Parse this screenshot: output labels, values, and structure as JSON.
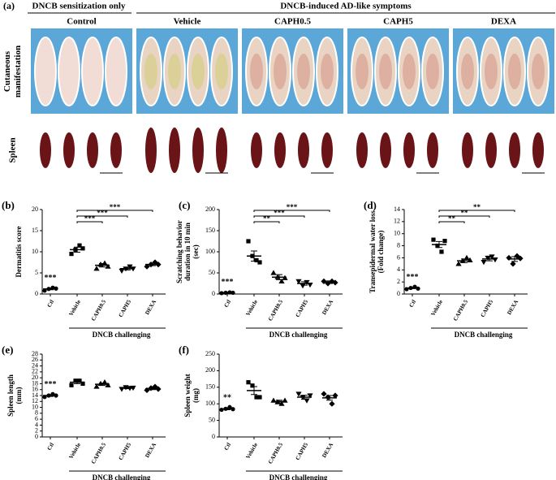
{
  "panel_a": {
    "label": "(a)",
    "header_left": "DNCB sensitization only",
    "header_right": "DNCB-induced AD-like symptoms",
    "groups": [
      "Control",
      "Vehicle",
      "CAPH0.5",
      "CAPH5",
      "DEXA"
    ],
    "rows": [
      [
        "Cutaneous",
        "manifestation"
      ],
      [
        "Spleen"
      ]
    ]
  },
  "chart_data": [
    {
      "type": "dotplot",
      "label": "(b)",
      "ylabel": [
        "Dermatitis score"
      ],
      "categories": [
        "Ctl",
        "Vehicle",
        "CAPH0.5",
        "CAPH5",
        "DEXA"
      ],
      "values": [
        1.2,
        10.5,
        6.8,
        6,
        7
      ],
      "errors": [
        0.2,
        0.6,
        0.4,
        0.3,
        0.3
      ],
      "points": [
        [
          0.8,
          1.2,
          1.5,
          1.3
        ],
        [
          9.5,
          10.5,
          11.5,
          10.8
        ],
        [
          6,
          7,
          7.3,
          6.5
        ],
        [
          5.5,
          6,
          6.5,
          6
        ],
        [
          6.5,
          7,
          7.5,
          7
        ]
      ],
      "markers": [
        "circle",
        "square",
        "triangle-up",
        "triangle-down",
        "diamond"
      ],
      "color": "#000000",
      "ylim": [
        0,
        20
      ],
      "yticks": [
        0,
        5,
        10,
        15,
        20
      ],
      "control_label": "***",
      "brackets": [
        {
          "from": 1,
          "to": 2,
          "label": "***"
        },
        {
          "from": 1,
          "to": 3,
          "label": "***"
        },
        {
          "from": 1,
          "to": 4,
          "label": "***"
        }
      ],
      "group_label": "DNCB challenging"
    },
    {
      "type": "dotplot",
      "label": "(c)",
      "ylabel": [
        "Scratching behavior",
        "duration in 10 min",
        "(sec)"
      ],
      "categories": [
        "Ctl",
        "Vehicle",
        "CAPH0.5",
        "CAPH5",
        "DEXA"
      ],
      "values": [
        3,
        90,
        40,
        25,
        28
      ],
      "errors": [
        1,
        12,
        6,
        4,
        3
      ],
      "points": [
        [
          2,
          3,
          4,
          3
        ],
        [
          125,
          90,
          80,
          75
        ],
        [
          50,
          40,
          30,
          38
        ],
        [
          30,
          20,
          28,
          22
        ],
        [
          30,
          25,
          30,
          27
        ]
      ],
      "markers": [
        "circle",
        "square",
        "triangle-up",
        "triangle-down",
        "diamond"
      ],
      "color": "#000000",
      "ylim": [
        0,
        200
      ],
      "yticks": [
        0,
        50,
        100,
        150,
        200
      ],
      "control_label": "***",
      "brackets": [
        {
          "from": 1,
          "to": 2,
          "label": "**"
        },
        {
          "from": 1,
          "to": 3,
          "label": "***"
        },
        {
          "from": 1,
          "to": 4,
          "label": "***"
        }
      ],
      "group_label": "DNCB challenging"
    },
    {
      "type": "dotplot",
      "label": "(d)",
      "ylabel": [
        "Transepidermal water loss",
        "(Fold change)"
      ],
      "categories": [
        "Ctl",
        "Vehicle",
        "CAPH0.5",
        "CAPH5",
        "DEXA"
      ],
      "values": [
        1,
        8.2,
        5.5,
        5.8,
        5.8
      ],
      "errors": [
        0.1,
        0.5,
        0.3,
        0.3,
        0.4
      ],
      "points": [
        [
          0.8,
          1,
          1.2,
          0.9
        ],
        [
          9,
          8,
          7,
          8.8
        ],
        [
          5,
          5.5,
          6,
          5.6
        ],
        [
          5.3,
          6,
          6.2,
          5.7
        ],
        [
          6,
          5,
          6.3,
          5.9
        ]
      ],
      "markers": [
        "circle",
        "square",
        "triangle-up",
        "triangle-down",
        "diamond"
      ],
      "color": "#000000",
      "ylim": [
        0,
        14
      ],
      "yticks": [
        0,
        2,
        4,
        6,
        8,
        10,
        12,
        14
      ],
      "control_label": "***",
      "brackets": [
        {
          "from": 1,
          "to": 2,
          "label": "**"
        },
        {
          "from": 1,
          "to": 3,
          "label": "**"
        },
        {
          "from": 1,
          "to": 4,
          "label": "**"
        }
      ],
      "group_label": "DNCB challenging"
    },
    {
      "type": "dotplot",
      "label": "(e)",
      "ylabel": [
        "Spleen length",
        "(mm)"
      ],
      "categories": [
        "Ctl",
        "Vehicle",
        "CAPH0.5",
        "CAPH5",
        "DEXA"
      ],
      "values": [
        14,
        18.5,
        17.8,
        16.5,
        16.3
      ],
      "errors": [
        0.3,
        0.5,
        0.4,
        0.2,
        0.3
      ],
      "points": [
        [
          13.5,
          14,
          14.5,
          14
        ],
        [
          17.5,
          19,
          19,
          18
        ],
        [
          17,
          18,
          18.5,
          17.5
        ],
        [
          16.2,
          16.8,
          16.5,
          16.6
        ],
        [
          15.8,
          16.5,
          17,
          16.2
        ]
      ],
      "markers": [
        "circle",
        "square",
        "triangle-up",
        "triangle-down",
        "diamond"
      ],
      "color": "#000000",
      "ylim": [
        0,
        28
      ],
      "yticks": [
        0,
        2,
        4,
        6,
        8,
        10,
        12,
        14,
        16,
        18,
        20,
        22,
        24,
        26,
        28
      ],
      "control_label": "***",
      "brackets": [],
      "group_label": "DNCB challenging"
    },
    {
      "type": "dotplot",
      "label": "(f)",
      "ylabel": [
        "Spleen weight",
        "(mg)"
      ],
      "categories": [
        "Ctl",
        "Vehicle",
        "CAPH0.5",
        "CAPH5",
        "DEXA"
      ],
      "values": [
        85,
        140,
        107,
        120,
        118
      ],
      "errors": [
        3,
        12,
        4,
        6,
        7
      ],
      "points": [
        [
          82,
          85,
          90,
          84
        ],
        [
          165,
          155,
          120,
          120
        ],
        [
          110,
          105,
          100,
          110
        ],
        [
          130,
          120,
          110,
          125
        ],
        [
          130,
          120,
          100,
          125
        ]
      ],
      "markers": [
        "circle",
        "square",
        "triangle-up",
        "triangle-down",
        "diamond"
      ],
      "color": "#000000",
      "ylim": [
        0,
        250
      ],
      "yticks": [
        0,
        50,
        100,
        150,
        200,
        250
      ],
      "control_label": "**",
      "brackets": [],
      "group_label": "DNCB challenging"
    }
  ]
}
